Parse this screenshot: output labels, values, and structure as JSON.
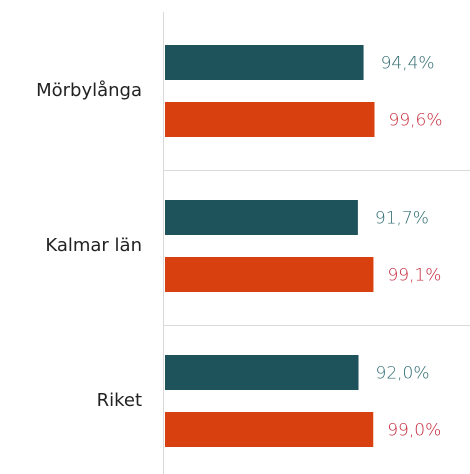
{
  "chart_data": {
    "type": "hbar",
    "categories": [
      "Mörbylånga",
      "Kalmar län",
      "Riket"
    ],
    "series": [
      {
        "color": "#1f535c",
        "label_color": "#2f6b70",
        "values": [
          94.4,
          91.7,
          92.0
        ],
        "value_labels": [
          "94,4%",
          "91,7%",
          "92,0%"
        ]
      },
      {
        "color": "#d9400f",
        "label_color": "#c4283a",
        "values": [
          99.6,
          99.1,
          99.0
        ],
        "value_labels": [
          "99,6%",
          "99,1%",
          "99,0%"
        ]
      }
    ],
    "xlim": [
      0,
      145
    ]
  }
}
